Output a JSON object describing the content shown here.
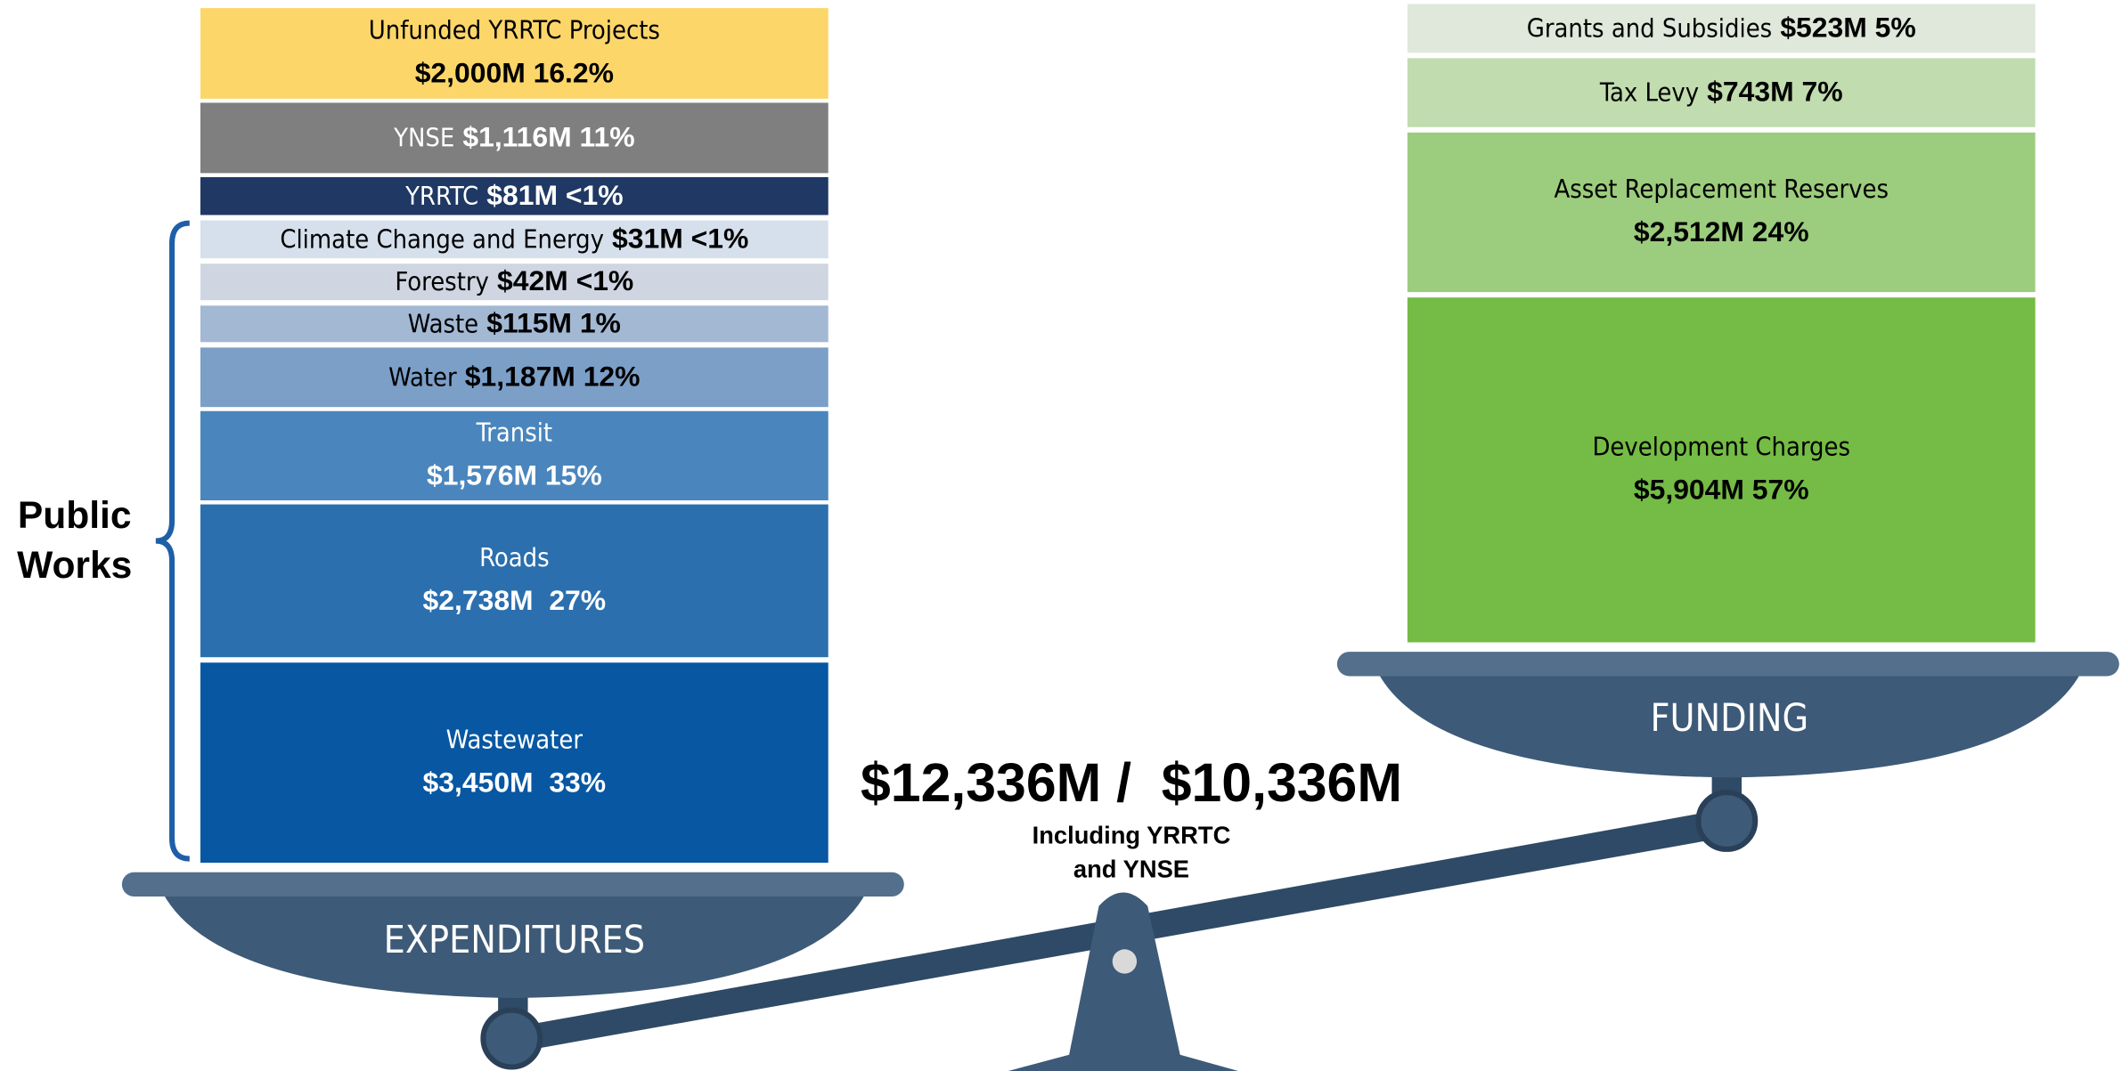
{
  "expenditures": {
    "label": "EXPENDITURES",
    "items": [
      {
        "name": "Unfunded YRRTC Projects",
        "amount": "$2,000M 16.2%"
      },
      {
        "name": "YNSE",
        "amount": "$1,116M 11%"
      },
      {
        "name": "YRRTC",
        "amount": "$81M <1%"
      },
      {
        "name": "Climate Change and Energy",
        "amount": "$31M <1%"
      },
      {
        "name": "Forestry",
        "amount": "$42M <1%"
      },
      {
        "name": "Waste",
        "amount": "$115M 1%"
      },
      {
        "name": "Water",
        "amount": "$1,187M 12%"
      },
      {
        "name": "Transit",
        "amount": "$1,576M 15%"
      },
      {
        "name": "Roads",
        "amount": "$2,738M  27%"
      },
      {
        "name": "Wastewater",
        "amount": "$3,450M  33%"
      }
    ],
    "group": {
      "lines": [
        "Public",
        "Works"
      ]
    }
  },
  "funding": {
    "label": "FUNDING",
    "items": [
      {
        "name": "Grants and Subsidies",
        "amount": "$523M 5%"
      },
      {
        "name": "Tax Levy",
        "amount": "$743M 7%"
      },
      {
        "name": "Asset Replacement Reserves",
        "amount": "$2,512M 24%"
      },
      {
        "name": "Development Charges",
        "amount": "$5,904M 57%"
      }
    ]
  },
  "total": {
    "amount": "$12,336M /  $10,336M",
    "note": [
      "Including YRRTC",
      "and YNSE"
    ]
  }
}
